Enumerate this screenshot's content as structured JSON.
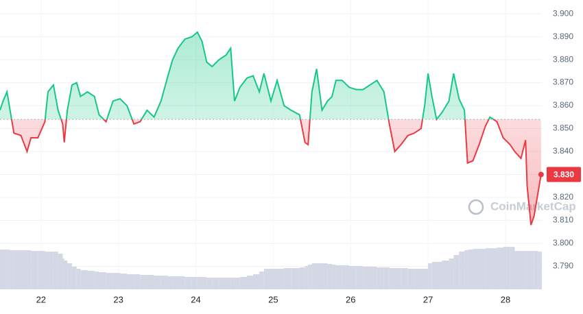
{
  "chart_data": {
    "type": "line",
    "x": [
      21.47,
      21.51,
      21.56,
      21.6,
      21.65,
      21.74,
      21.82,
      21.87,
      21.96,
      22.05,
      22.09,
      22.16,
      22.22,
      22.28,
      22.3,
      22.34,
      22.4,
      22.46,
      22.51,
      22.6,
      22.69,
      22.75,
      22.84,
      22.93,
      23.02,
      23.11,
      23.2,
      23.28,
      23.37,
      23.46,
      23.55,
      23.64,
      23.7,
      23.77,
      23.86,
      23.95,
      24.02,
      24.08,
      24.14,
      24.21,
      24.3,
      24.39,
      24.45,
      24.5,
      24.57,
      24.66,
      24.74,
      24.82,
      24.88,
      24.97,
      25.05,
      25.14,
      25.23,
      25.34,
      25.41,
      25.45,
      25.5,
      25.56,
      25.63,
      25.7,
      25.76,
      25.81,
      25.89,
      25.98,
      26.07,
      26.16,
      26.25,
      26.34,
      26.43,
      26.5,
      26.57,
      26.65,
      26.74,
      26.82,
      26.91,
      26.96,
      27.0,
      27.05,
      27.11,
      27.18,
      27.27,
      27.33,
      27.4,
      27.47,
      27.51,
      27.58,
      27.66,
      27.74,
      27.8,
      27.89,
      27.97,
      28.06,
      28.12,
      28.2,
      28.26,
      28.28,
      28.33,
      28.37,
      28.42,
      28.46
    ],
    "values": [
      3.858,
      3.862,
      3.866,
      3.858,
      3.848,
      3.847,
      3.84,
      3.846,
      3.846,
      3.853,
      3.866,
      3.869,
      3.858,
      3.852,
      3.844,
      3.858,
      3.869,
      3.87,
      3.864,
      3.866,
      3.864,
      3.856,
      3.853,
      3.862,
      3.863,
      3.86,
      3.852,
      3.853,
      3.858,
      3.855,
      3.862,
      3.873,
      3.88,
      3.885,
      3.889,
      3.89,
      3.892,
      3.888,
      3.879,
      3.877,
      3.88,
      3.882,
      3.885,
      3.862,
      3.868,
      3.872,
      3.873,
      3.866,
      3.874,
      3.862,
      3.871,
      3.86,
      3.858,
      3.856,
      3.844,
      3.843,
      3.866,
      3.876,
      3.858,
      3.862,
      3.864,
      3.871,
      3.871,
      3.868,
      3.867,
      3.867,
      3.869,
      3.871,
      3.866,
      3.852,
      3.84,
      3.843,
      3.847,
      3.848,
      3.85,
      3.861,
      3.874,
      3.864,
      3.854,
      3.857,
      3.862,
      3.874,
      3.863,
      3.858,
      3.835,
      3.836,
      3.843,
      3.851,
      3.855,
      3.853,
      3.846,
      3.843,
      3.84,
      3.837,
      3.845,
      3.825,
      3.808,
      3.812,
      3.822,
      3.83
    ],
    "volume": [
      58,
      58,
      58,
      57,
      57,
      57,
      57,
      56,
      56,
      55,
      55,
      55,
      52,
      45,
      42,
      38,
      33,
      30,
      28,
      27,
      26,
      25,
      24,
      24,
      23,
      22,
      22,
      21,
      21,
      20,
      20,
      19,
      19,
      19,
      18,
      18,
      18,
      18,
      17,
      17,
      17,
      17,
      17,
      17,
      18,
      20,
      22,
      26,
      30,
      30,
      30,
      31,
      31,
      32,
      34,
      36,
      38,
      38,
      38,
      37,
      36,
      35,
      35,
      34,
      34,
      33,
      33,
      32,
      32,
      31,
      31,
      31,
      30,
      30,
      30,
      30,
      38,
      40,
      40,
      42,
      45,
      50,
      55,
      57,
      58,
      59,
      59,
      60,
      60,
      61,
      62,
      62,
      56,
      56,
      56,
      56,
      56,
      56,
      55,
      55
    ],
    "volume_ylim": [
      0,
      100
    ],
    "baseline": 3.854,
    "up_color": "#16c784",
    "down_color": "#ea3943",
    "volume_color": "#d3d8e4",
    "xlim": [
      21.47,
      28.47
    ],
    "xticks": [
      22,
      23,
      24,
      25,
      26,
      27,
      28
    ],
    "ylim": [
      3.78,
      3.906
    ],
    "yticks": [
      {
        "value": 3.79,
        "label": "3.790"
      },
      {
        "value": 3.8,
        "label": "3.800"
      },
      {
        "value": 3.81,
        "label": "3.810"
      },
      {
        "value": 3.82,
        "label": "3.820"
      },
      {
        "value": 3.83,
        "label": "3.830"
      },
      {
        "value": 3.84,
        "label": "3.840"
      },
      {
        "value": 3.85,
        "label": "3.850"
      },
      {
        "value": 3.86,
        "label": "3.860"
      },
      {
        "value": 3.87,
        "label": "3.870"
      },
      {
        "value": 3.88,
        "label": "3.880"
      },
      {
        "value": 3.89,
        "label": "3.890"
      },
      {
        "value": 3.9,
        "label": "3.900"
      }
    ],
    "current_price": {
      "value": 3.83,
      "label": "3.830"
    },
    "watermark": "CoinMarketCap",
    "grid": true
  }
}
